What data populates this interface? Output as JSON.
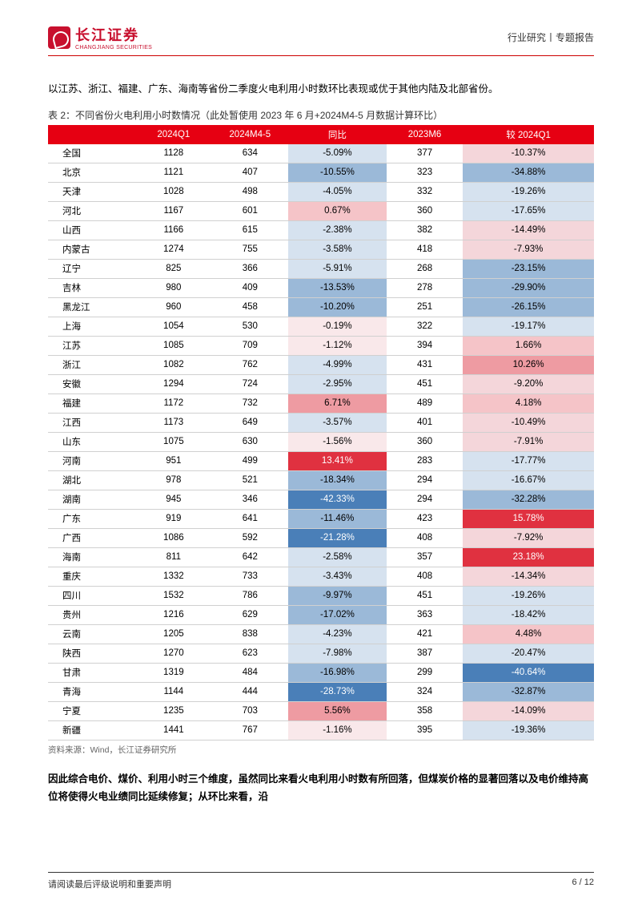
{
  "header": {
    "logo_cn": "长江证券",
    "logo_en": "CHANGJIANG SECURITIES",
    "right": "行业研究丨专题报告"
  },
  "intro": "以江苏、浙江、福建、广东、海南等省份二季度火电利用小时数环比表现或优于其他内陆及北部省份。",
  "table_caption": "表 2：不同省份火电利用小时数情况（此处暂使用 2023 年 6 月+2024M4-5 月数据计算环比）",
  "table": {
    "columns": [
      "",
      "2024Q1",
      "2024M4-5",
      "同比",
      "2023M6",
      "较 2024Q1"
    ],
    "col_widths": [
      "16%",
      "14%",
      "14%",
      "18%",
      "14%",
      "24%"
    ],
    "col3_colors": {
      "strong_neg": "#4a7fb8",
      "med_neg": "#9bb9d8",
      "light_neg": "#d6e2ef",
      "near_zero": "#f9e8ea",
      "light_pos": "#f5c4c8",
      "med_pos": "#ee9ba2",
      "strong_pos": "#e03140"
    },
    "col5_colors": {
      "strong_neg": "#4a7fb8",
      "med_neg": "#9bb9d8",
      "light_neg": "#d6e2ef",
      "faint_neg": "#f4d6da",
      "light_pos": "#f5c4c8",
      "med_pos": "#ee9ba2",
      "strong_pos": "#e03140"
    },
    "rows": [
      {
        "r": "全国",
        "q1": "1128",
        "m45": "634",
        "yoy": "-5.09%",
        "yoy_c": "light_neg",
        "m6": "377",
        "vq": "-10.37%",
        "vq_c": "faint_neg"
      },
      {
        "r": "北京",
        "q1": "1121",
        "m45": "407",
        "yoy": "-10.55%",
        "yoy_c": "med_neg",
        "m6": "323",
        "vq": "-34.88%",
        "vq_c": "med_neg"
      },
      {
        "r": "天津",
        "q1": "1028",
        "m45": "498",
        "yoy": "-4.05%",
        "yoy_c": "light_neg",
        "m6": "332",
        "vq": "-19.26%",
        "vq_c": "light_neg"
      },
      {
        "r": "河北",
        "q1": "1167",
        "m45": "601",
        "yoy": "0.67%",
        "yoy_c": "light_pos",
        "m6": "360",
        "vq": "-17.65%",
        "vq_c": "light_neg"
      },
      {
        "r": "山西",
        "q1": "1166",
        "m45": "615",
        "yoy": "-2.38%",
        "yoy_c": "light_neg",
        "m6": "382",
        "vq": "-14.49%",
        "vq_c": "faint_neg"
      },
      {
        "r": "内蒙古",
        "q1": "1274",
        "m45": "755",
        "yoy": "-3.58%",
        "yoy_c": "light_neg",
        "m6": "418",
        "vq": "-7.93%",
        "vq_c": "faint_neg"
      },
      {
        "r": "辽宁",
        "q1": "825",
        "m45": "366",
        "yoy": "-5.91%",
        "yoy_c": "light_neg",
        "m6": "268",
        "vq": "-23.15%",
        "vq_c": "med_neg"
      },
      {
        "r": "吉林",
        "q1": "980",
        "m45": "409",
        "yoy": "-13.53%",
        "yoy_c": "med_neg",
        "m6": "278",
        "vq": "-29.90%",
        "vq_c": "med_neg"
      },
      {
        "r": "黑龙江",
        "q1": "960",
        "m45": "458",
        "yoy": "-10.20%",
        "yoy_c": "med_neg",
        "m6": "251",
        "vq": "-26.15%",
        "vq_c": "med_neg"
      },
      {
        "r": "上海",
        "q1": "1054",
        "m45": "530",
        "yoy": "-0.19%",
        "yoy_c": "near_zero",
        "m6": "322",
        "vq": "-19.17%",
        "vq_c": "light_neg"
      },
      {
        "r": "江苏",
        "q1": "1085",
        "m45": "709",
        "yoy": "-1.12%",
        "yoy_c": "near_zero",
        "m6": "394",
        "vq": "1.66%",
        "vq_c": "light_pos"
      },
      {
        "r": "浙江",
        "q1": "1082",
        "m45": "762",
        "yoy": "-4.99%",
        "yoy_c": "light_neg",
        "m6": "431",
        "vq": "10.26%",
        "vq_c": "med_pos"
      },
      {
        "r": "安徽",
        "q1": "1294",
        "m45": "724",
        "yoy": "-2.95%",
        "yoy_c": "light_neg",
        "m6": "451",
        "vq": "-9.20%",
        "vq_c": "faint_neg"
      },
      {
        "r": "福建",
        "q1": "1172",
        "m45": "732",
        "yoy": "6.71%",
        "yoy_c": "med_pos",
        "m6": "489",
        "vq": "4.18%",
        "vq_c": "light_pos"
      },
      {
        "r": "江西",
        "q1": "1173",
        "m45": "649",
        "yoy": "-3.57%",
        "yoy_c": "light_neg",
        "m6": "401",
        "vq": "-10.49%",
        "vq_c": "faint_neg"
      },
      {
        "r": "山东",
        "q1": "1075",
        "m45": "630",
        "yoy": "-1.56%",
        "yoy_c": "near_zero",
        "m6": "360",
        "vq": "-7.91%",
        "vq_c": "faint_neg"
      },
      {
        "r": "河南",
        "q1": "951",
        "m45": "499",
        "yoy": "13.41%",
        "yoy_c": "strong_pos",
        "m6": "283",
        "vq": "-17.77%",
        "vq_c": "light_neg"
      },
      {
        "r": "湖北",
        "q1": "978",
        "m45": "521",
        "yoy": "-18.34%",
        "yoy_c": "med_neg",
        "m6": "294",
        "vq": "-16.67%",
        "vq_c": "light_neg"
      },
      {
        "r": "湖南",
        "q1": "945",
        "m45": "346",
        "yoy": "-42.33%",
        "yoy_c": "strong_neg",
        "m6": "294",
        "vq": "-32.28%",
        "vq_c": "med_neg"
      },
      {
        "r": "广东",
        "q1": "919",
        "m45": "641",
        "yoy": "-11.46%",
        "yoy_c": "med_neg",
        "m6": "423",
        "vq": "15.78%",
        "vq_c": "strong_pos"
      },
      {
        "r": "广西",
        "q1": "1086",
        "m45": "592",
        "yoy": "-21.28%",
        "yoy_c": "strong_neg",
        "m6": "408",
        "vq": "-7.92%",
        "vq_c": "faint_neg"
      },
      {
        "r": "海南",
        "q1": "811",
        "m45": "642",
        "yoy": "-2.58%",
        "yoy_c": "light_neg",
        "m6": "357",
        "vq": "23.18%",
        "vq_c": "strong_pos"
      },
      {
        "r": "重庆",
        "q1": "1332",
        "m45": "733",
        "yoy": "-3.43%",
        "yoy_c": "light_neg",
        "m6": "408",
        "vq": "-14.34%",
        "vq_c": "faint_neg"
      },
      {
        "r": "四川",
        "q1": "1532",
        "m45": "786",
        "yoy": "-9.97%",
        "yoy_c": "med_neg",
        "m6": "451",
        "vq": "-19.26%",
        "vq_c": "light_neg"
      },
      {
        "r": "贵州",
        "q1": "1216",
        "m45": "629",
        "yoy": "-17.02%",
        "yoy_c": "med_neg",
        "m6": "363",
        "vq": "-18.42%",
        "vq_c": "light_neg"
      },
      {
        "r": "云南",
        "q1": "1205",
        "m45": "838",
        "yoy": "-4.23%",
        "yoy_c": "light_neg",
        "m6": "421",
        "vq": "4.48%",
        "vq_c": "light_pos"
      },
      {
        "r": "陕西",
        "q1": "1270",
        "m45": "623",
        "yoy": "-7.98%",
        "yoy_c": "light_neg",
        "m6": "387",
        "vq": "-20.47%",
        "vq_c": "light_neg"
      },
      {
        "r": "甘肃",
        "q1": "1319",
        "m45": "484",
        "yoy": "-16.98%",
        "yoy_c": "med_neg",
        "m6": "299",
        "vq": "-40.64%",
        "vq_c": "strong_neg"
      },
      {
        "r": "青海",
        "q1": "1144",
        "m45": "444",
        "yoy": "-28.73%",
        "yoy_c": "strong_neg",
        "m6": "324",
        "vq": "-32.87%",
        "vq_c": "med_neg"
      },
      {
        "r": "宁夏",
        "q1": "1235",
        "m45": "703",
        "yoy": "5.56%",
        "yoy_c": "med_pos",
        "m6": "358",
        "vq": "-14.09%",
        "vq_c": "faint_neg"
      },
      {
        "r": "新疆",
        "q1": "1441",
        "m45": "767",
        "yoy": "-1.16%",
        "yoy_c": "near_zero",
        "m6": "395",
        "vq": "-19.36%",
        "vq_c": "light_neg"
      }
    ]
  },
  "source_note": "资料来源：Wind，长江证券研究所",
  "conclusion": "因此综合电价、煤价、利用小时三个维度，虽然同比来看火电利用小时数有所回落，但煤炭价格的显著回落以及电价维持高位将使得火电业绩同比延续修复；从环比来看，沿",
  "footer": {
    "left": "请阅读最后评级说明和重要声明",
    "right": "6 / 12"
  }
}
